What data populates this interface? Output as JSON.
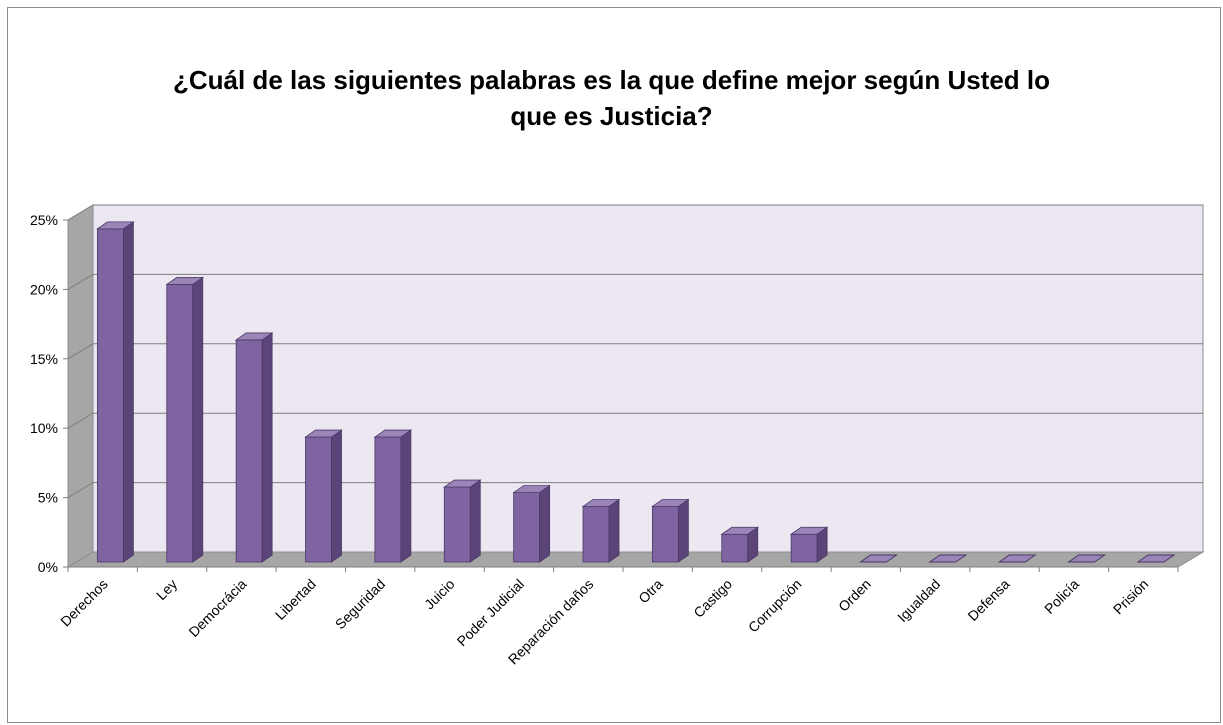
{
  "chart_data": {
    "type": "bar",
    "title": "¿Cuál de las siguientes palabras es la que define mejor según Usted lo que es Justicia?",
    "title_lines": [
      "¿Cuál de las siguientes palabras es la que define mejor según Usted lo",
      "que es Justicia?"
    ],
    "categories": [
      "Derechos",
      "Ley",
      "Democrácia",
      "Libertad",
      "Seguridad",
      "Juicio",
      "Poder Judicial",
      "Reparación daños",
      "Otra",
      "Castigo",
      "Corrupción",
      "Orden",
      "Igualdad",
      "Defensa",
      "Policía",
      "Prisión"
    ],
    "values": [
      24,
      20,
      16,
      9,
      9,
      5.4,
      5,
      4,
      4,
      2,
      2,
      0,
      0,
      0,
      0,
      0
    ],
    "value_unit": "%",
    "ylim": [
      0,
      25
    ],
    "yticks": [
      0,
      5,
      10,
      15,
      20,
      25
    ],
    "ytick_labels": [
      "0%",
      "5%",
      "10%",
      "15%",
      "20%",
      "25%"
    ],
    "xlabel": "",
    "ylabel": "",
    "grid": true,
    "legend": "none",
    "style": "3d-column"
  },
  "colors": {
    "bar_front": "#8064a2",
    "bar_side": "#5b4578",
    "bar_top": "#9a84b8",
    "back_wall": "#ece7f1",
    "side_wall": "#a6a6a6",
    "floor": "#a6a6a6",
    "gridline": "#7f7f7f"
  }
}
